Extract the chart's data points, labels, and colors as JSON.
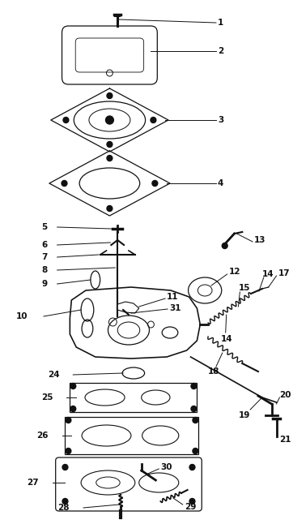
{
  "bg_color": "#ffffff",
  "lc": "#111111",
  "fig_w": 3.62,
  "fig_h": 6.46,
  "dpi": 100
}
